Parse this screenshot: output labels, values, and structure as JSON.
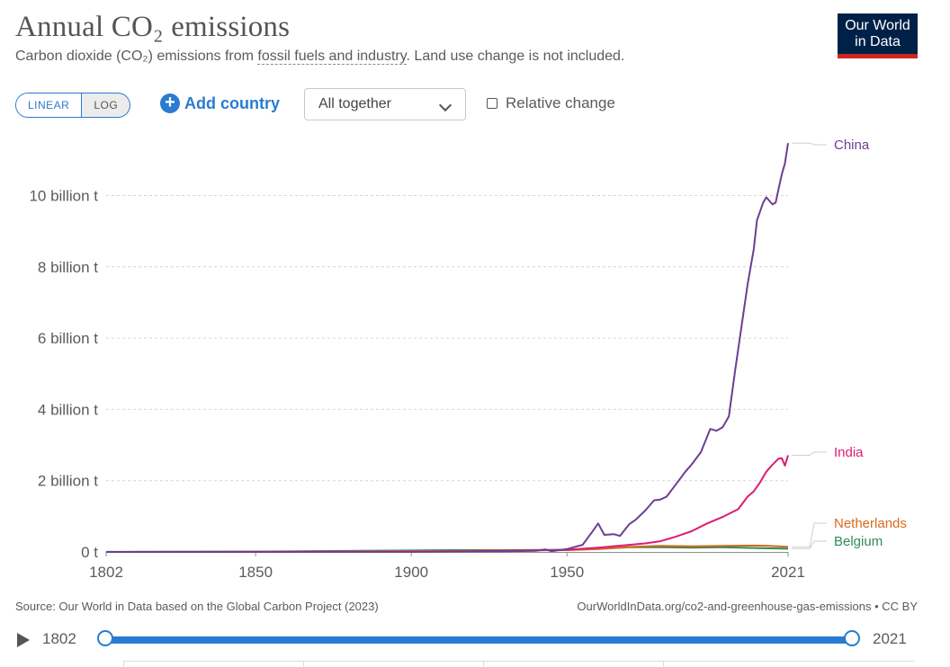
{
  "header": {
    "title": "Annual CO₂ emissions",
    "subtitle_pre": "Carbon dioxide (CO₂) emissions from ",
    "subtitle_link": "fossil fuels and industry",
    "subtitle_post": ". Land use change is not included.",
    "logo_line1": "Our World",
    "logo_line2": "in Data"
  },
  "controls": {
    "linear_label": "LINEAR",
    "log_label": "LOG",
    "add_country_label": "Add country",
    "select_value": "All together",
    "relative_change_label": "Relative change"
  },
  "footer": {
    "source": "Source: Our World in Data based on the Global Carbon Project (2023)",
    "link": "OurWorldInData.org/co2-and-greenhouse-gas-emissions • CC BY"
  },
  "timeline": {
    "start": "1802",
    "end": "2021"
  },
  "colors": {
    "accent": "#2a7bd1",
    "China": "#6d3e91",
    "India": "#dd1b73",
    "Netherlands": "#d66a1d",
    "Belgium": "#2c8c57",
    "logo_bg": "#002147",
    "logo_bar": "#ce261e"
  },
  "chart_data": {
    "type": "line",
    "title": "Annual CO₂ emissions",
    "ylim": [
      0,
      11.5
    ],
    "xlim": [
      1802,
      2021
    ],
    "y_ticks": [
      {
        "value": 0,
        "label": "0 t"
      },
      {
        "value": 2,
        "label": "2 billion t"
      },
      {
        "value": 4,
        "label": "4 billion t"
      },
      {
        "value": 6,
        "label": "6 billion t"
      },
      {
        "value": 8,
        "label": "8 billion t"
      },
      {
        "value": 10,
        "label": "10 billion t"
      }
    ],
    "x_ticks": [
      {
        "value": 1802,
        "label": "1802"
      },
      {
        "value": 1850,
        "label": "1850"
      },
      {
        "value": 1900,
        "label": "1900"
      },
      {
        "value": 1950,
        "label": "1950"
      },
      {
        "value": 2021,
        "label": "2021"
      }
    ],
    "grid": true,
    "legend": "right-labels",
    "series": [
      {
        "name": "China",
        "points": [
          [
            1802,
            0
          ],
          [
            1900,
            0.002
          ],
          [
            1930,
            0.02
          ],
          [
            1940,
            0.03
          ],
          [
            1943,
            0.07
          ],
          [
            1945,
            0.02
          ],
          [
            1950,
            0.08
          ],
          [
            1955,
            0.2
          ],
          [
            1958,
            0.55
          ],
          [
            1960,
            0.8
          ],
          [
            1962,
            0.48
          ],
          [
            1965,
            0.5
          ],
          [
            1967,
            0.45
          ],
          [
            1970,
            0.78
          ],
          [
            1972,
            0.9
          ],
          [
            1975,
            1.15
          ],
          [
            1978,
            1.45
          ],
          [
            1980,
            1.47
          ],
          [
            1982,
            1.55
          ],
          [
            1985,
            1.9
          ],
          [
            1988,
            2.25
          ],
          [
            1990,
            2.45
          ],
          [
            1993,
            2.8
          ],
          [
            1996,
            3.45
          ],
          [
            1998,
            3.4
          ],
          [
            2000,
            3.5
          ],
          [
            2002,
            3.8
          ],
          [
            2004,
            5.1
          ],
          [
            2006,
            6.3
          ],
          [
            2008,
            7.5
          ],
          [
            2010,
            8.5
          ],
          [
            2011,
            9.3
          ],
          [
            2013,
            9.8
          ],
          [
            2014,
            9.95
          ],
          [
            2015,
            9.85
          ],
          [
            2016,
            9.75
          ],
          [
            2017,
            9.8
          ],
          [
            2018,
            10.2
          ],
          [
            2019,
            10.6
          ],
          [
            2020,
            10.9
          ],
          [
            2021,
            11.47
          ]
        ]
      },
      {
        "name": "India",
        "points": [
          [
            1802,
            0
          ],
          [
            1900,
            0.01
          ],
          [
            1930,
            0.03
          ],
          [
            1950,
            0.06
          ],
          [
            1960,
            0.12
          ],
          [
            1970,
            0.2
          ],
          [
            1975,
            0.24
          ],
          [
            1980,
            0.3
          ],
          [
            1985,
            0.43
          ],
          [
            1990,
            0.58
          ],
          [
            1995,
            0.8
          ],
          [
            2000,
            0.98
          ],
          [
            2005,
            1.2
          ],
          [
            2008,
            1.55
          ],
          [
            2010,
            1.7
          ],
          [
            2012,
            1.95
          ],
          [
            2014,
            2.25
          ],
          [
            2016,
            2.45
          ],
          [
            2018,
            2.62
          ],
          [
            2019,
            2.63
          ],
          [
            2020,
            2.42
          ],
          [
            2021,
            2.71
          ]
        ]
      },
      {
        "name": "Netherlands",
        "points": [
          [
            1802,
            0
          ],
          [
            1850,
            0.005
          ],
          [
            1900,
            0.025
          ],
          [
            1930,
            0.04
          ],
          [
            1950,
            0.05
          ],
          [
            1960,
            0.08
          ],
          [
            1970,
            0.14
          ],
          [
            1980,
            0.17
          ],
          [
            1990,
            0.16
          ],
          [
            2000,
            0.17
          ],
          [
            2010,
            0.18
          ],
          [
            2015,
            0.17
          ],
          [
            2021,
            0.14
          ]
        ]
      },
      {
        "name": "Belgium",
        "points": [
          [
            1802,
            0.002
          ],
          [
            1850,
            0.01
          ],
          [
            1900,
            0.04
          ],
          [
            1913,
            0.05
          ],
          [
            1930,
            0.05
          ],
          [
            1950,
            0.06
          ],
          [
            1960,
            0.08
          ],
          [
            1970,
            0.13
          ],
          [
            1980,
            0.13
          ],
          [
            1990,
            0.12
          ],
          [
            2000,
            0.13
          ],
          [
            2010,
            0.11
          ],
          [
            2021,
            0.09
          ]
        ]
      }
    ]
  }
}
